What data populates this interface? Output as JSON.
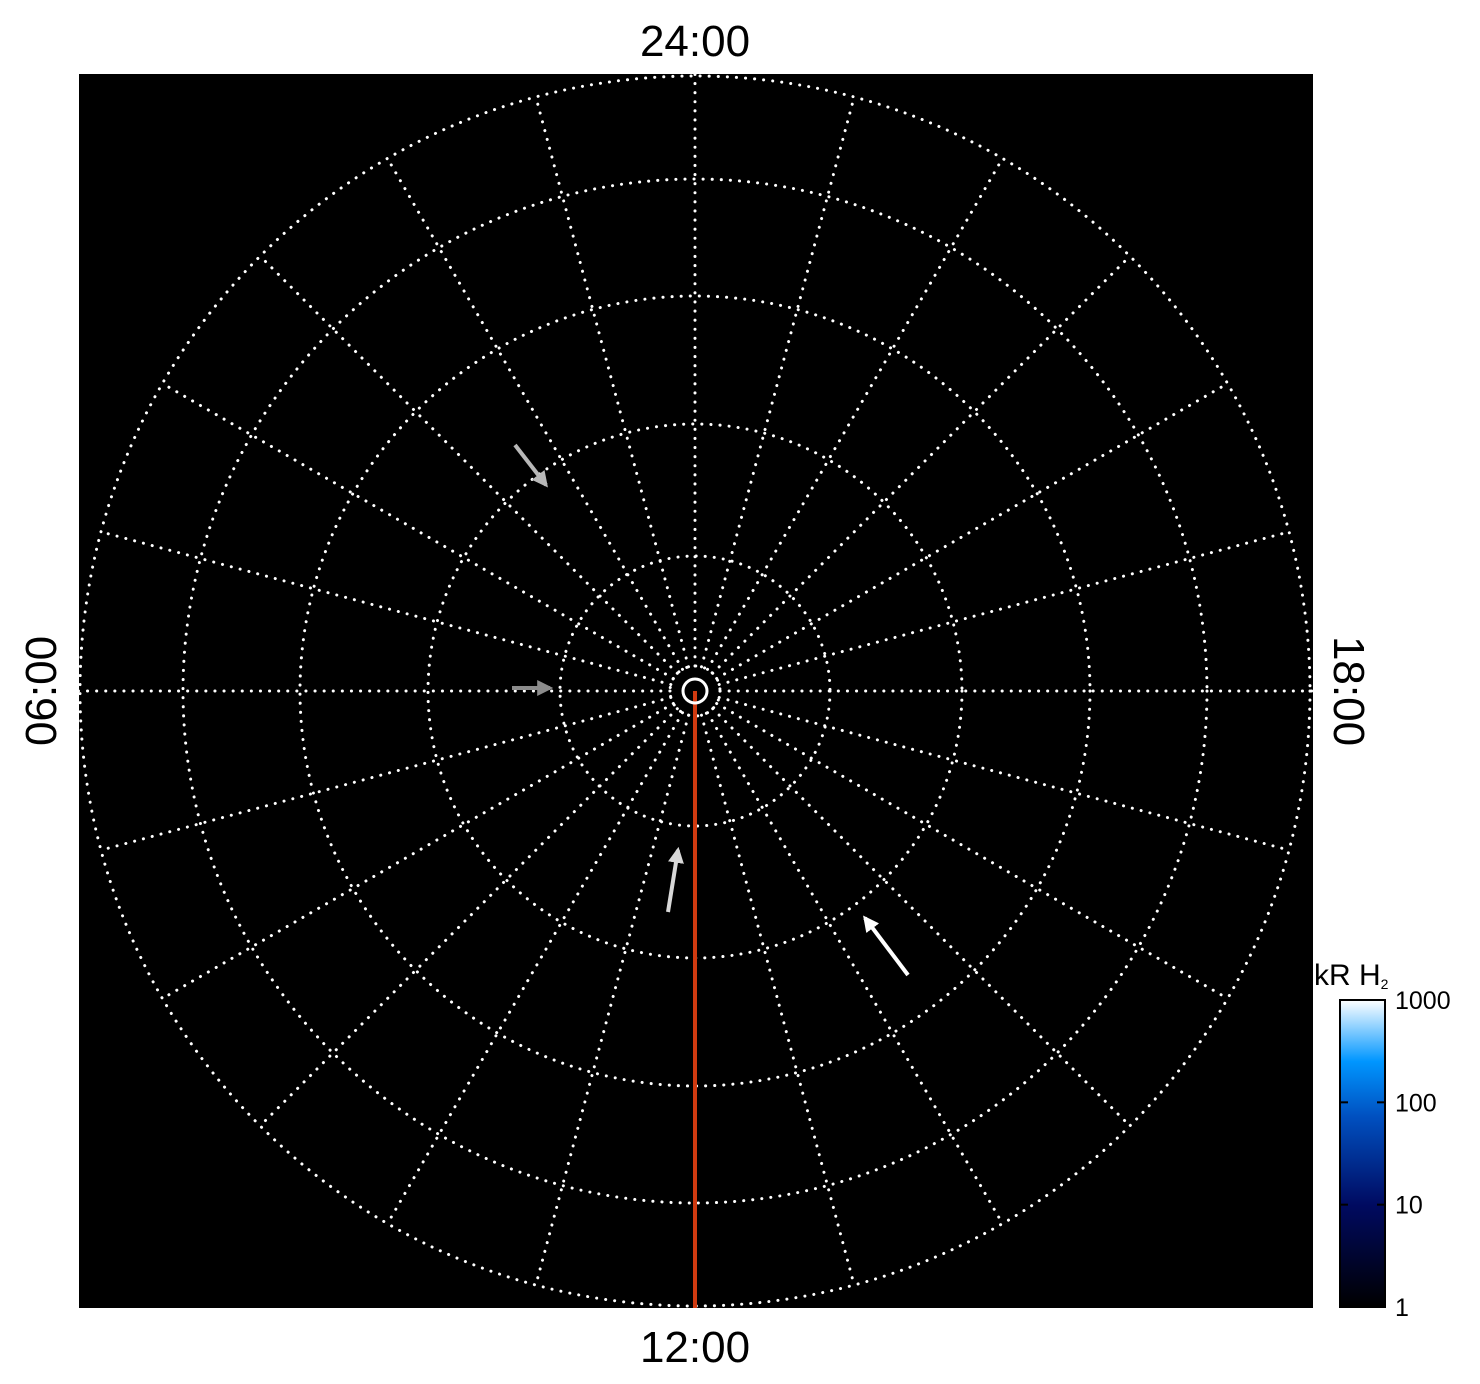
{
  "chart_data": {
    "type": "polar",
    "title": "",
    "background": "#000000",
    "grid": true,
    "grid_color": "#ffffff",
    "local_time_labels": {
      "top": "24:00",
      "bottom": "12:00",
      "left": "06:00",
      "right": "18:00"
    },
    "meridian_line": {
      "from_local_time": "center",
      "to_local_time": "12:00",
      "color": "#d03a10"
    },
    "arrows": [
      {
        "direction": "down-right",
        "color": "#b8b8b8"
      },
      {
        "direction": "right",
        "color": "#8c8c8c"
      },
      {
        "direction": "up",
        "color": "#d8d8d8"
      },
      {
        "direction": "up-left",
        "color": "#ffffff"
      }
    ],
    "colorbar": {
      "title": "kR H",
      "title_subscript": "2",
      "scale": "log",
      "range": [
        1,
        1000
      ],
      "ticks": [
        "1000",
        "100",
        "10",
        "1"
      ],
      "colors": [
        "#000000",
        "#000a60",
        "#0050c0",
        "#0096ff",
        "#ffffff"
      ],
      "legend_placement": "bottom-right"
    }
  }
}
